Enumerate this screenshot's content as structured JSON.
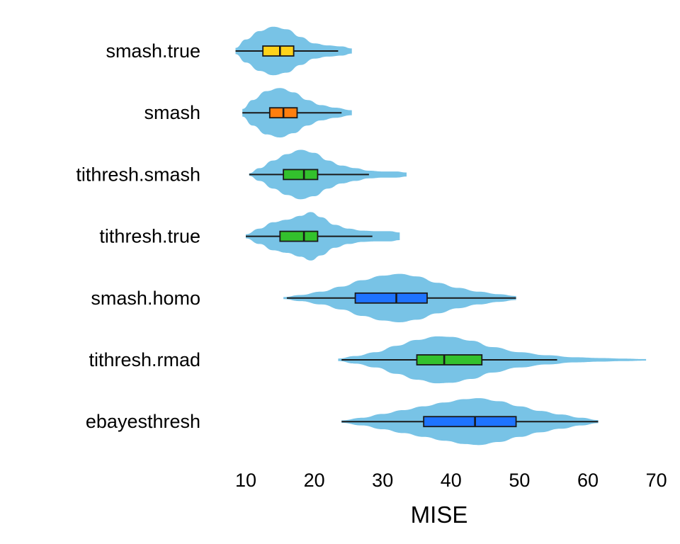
{
  "chart_data": {
    "type": "violin-box",
    "title": "",
    "xlabel": "MISE",
    "ylabel": "",
    "xlim": [
      8,
      71
    ],
    "xticks": [
      10,
      20,
      30,
      40,
      50,
      60,
      70
    ],
    "xtick_labels": [
      "10",
      "20",
      "30",
      "40",
      "50",
      "60",
      "70"
    ],
    "grid": false,
    "legend": "none",
    "violin_color": "#78C3E6",
    "series": [
      {
        "name": "smash.true",
        "box_color": "#FFD21A",
        "whisker_low": 8.5,
        "q1": 12.5,
        "median": 15.0,
        "q3": 17.0,
        "whisker_high": 23.5,
        "min": 8.5,
        "max": 25.5,
        "density": [
          [
            8.5,
            0.12
          ],
          [
            10,
            0.45
          ],
          [
            12,
            0.78
          ],
          [
            14,
            0.95
          ],
          [
            16,
            0.85
          ],
          [
            18,
            0.55
          ],
          [
            20,
            0.3
          ],
          [
            22,
            0.22
          ],
          [
            24,
            0.18
          ],
          [
            25.5,
            0.1
          ]
        ]
      },
      {
        "name": "smash",
        "box_color": "#FF7F0E",
        "whisker_low": 9.5,
        "q1": 13.5,
        "median": 15.5,
        "q3": 17.5,
        "whisker_high": 24.0,
        "min": 9.5,
        "max": 25.5,
        "density": [
          [
            9.5,
            0.15
          ],
          [
            11,
            0.5
          ],
          [
            13,
            0.85
          ],
          [
            15,
            0.97
          ],
          [
            17,
            0.8
          ],
          [
            19,
            0.5
          ],
          [
            21,
            0.3
          ],
          [
            23,
            0.2
          ],
          [
            25.5,
            0.1
          ]
        ]
      },
      {
        "name": "tithresh.smash",
        "box_color": "#33C12D",
        "whisker_low": 10.5,
        "q1": 15.5,
        "median": 18.5,
        "q3": 20.5,
        "whisker_high": 28.0,
        "min": 10.5,
        "max": 33.5,
        "density": [
          [
            10.5,
            0.05
          ],
          [
            12,
            0.25
          ],
          [
            14,
            0.55
          ],
          [
            16,
            0.8
          ],
          [
            18,
            0.97
          ],
          [
            20,
            0.85
          ],
          [
            22,
            0.55
          ],
          [
            24,
            0.35
          ],
          [
            26,
            0.25
          ],
          [
            28,
            0.15
          ],
          [
            30,
            0.12
          ],
          [
            32,
            0.12
          ],
          [
            33.5,
            0.08
          ]
        ]
      },
      {
        "name": "tithresh.true",
        "box_color": "#33C12D",
        "whisker_low": 10.0,
        "q1": 15.0,
        "median": 18.5,
        "q3": 20.5,
        "whisker_high": 28.5,
        "min": 10.0,
        "max": 32.5,
        "density": [
          [
            10,
            0.08
          ],
          [
            12,
            0.3
          ],
          [
            14,
            0.55
          ],
          [
            16,
            0.65
          ],
          [
            18,
            0.8
          ],
          [
            19.5,
            0.95
          ],
          [
            21,
            0.75
          ],
          [
            23,
            0.45
          ],
          [
            25,
            0.3
          ],
          [
            27,
            0.22
          ],
          [
            29,
            0.2
          ],
          [
            31,
            0.2
          ],
          [
            32.5,
            0.15
          ]
        ]
      },
      {
        "name": "smash.homo",
        "box_color": "#1E73FF",
        "whisker_low": 16.0,
        "q1": 26.0,
        "median": 32.0,
        "q3": 36.5,
        "whisker_high": 49.5,
        "min": 15.5,
        "max": 49.5,
        "density": [
          [
            15.5,
            0.04
          ],
          [
            18,
            0.12
          ],
          [
            21,
            0.25
          ],
          [
            24,
            0.45
          ],
          [
            27,
            0.7
          ],
          [
            30,
            0.88
          ],
          [
            32.5,
            0.95
          ],
          [
            35,
            0.85
          ],
          [
            38,
            0.6
          ],
          [
            41,
            0.4
          ],
          [
            44,
            0.25
          ],
          [
            47,
            0.15
          ],
          [
            49.5,
            0.08
          ]
        ]
      },
      {
        "name": "tithresh.rmad",
        "box_color": "#33C12D",
        "whisker_low": 24.0,
        "q1": 35.0,
        "median": 39.0,
        "q3": 44.5,
        "whisker_high": 55.5,
        "min": 23.5,
        "max": 68.5,
        "density": [
          [
            23.5,
            0.05
          ],
          [
            26,
            0.15
          ],
          [
            29,
            0.3
          ],
          [
            32,
            0.55
          ],
          [
            35,
            0.78
          ],
          [
            38,
            0.92
          ],
          [
            40,
            0.9
          ],
          [
            43,
            0.75
          ],
          [
            46,
            0.5
          ],
          [
            50,
            0.3
          ],
          [
            54,
            0.18
          ],
          [
            58,
            0.1
          ],
          [
            62,
            0.07
          ],
          [
            65,
            0.05
          ],
          [
            68.5,
            0.03
          ]
        ]
      },
      {
        "name": "ebayesthresh",
        "box_color": "#1E73FF",
        "whisker_low": 24.0,
        "q1": 36.0,
        "median": 43.5,
        "q3": 49.5,
        "whisker_high": 61.5,
        "min": 24.0,
        "max": 61.5,
        "density": [
          [
            24,
            0.05
          ],
          [
            27,
            0.15
          ],
          [
            30,
            0.3
          ],
          [
            33,
            0.45
          ],
          [
            36,
            0.6
          ],
          [
            39,
            0.75
          ],
          [
            42,
            0.88
          ],
          [
            44,
            0.92
          ],
          [
            47,
            0.8
          ],
          [
            50,
            0.6
          ],
          [
            53,
            0.42
          ],
          [
            56,
            0.28
          ],
          [
            59,
            0.15
          ],
          [
            61.5,
            0.06
          ]
        ]
      }
    ]
  }
}
